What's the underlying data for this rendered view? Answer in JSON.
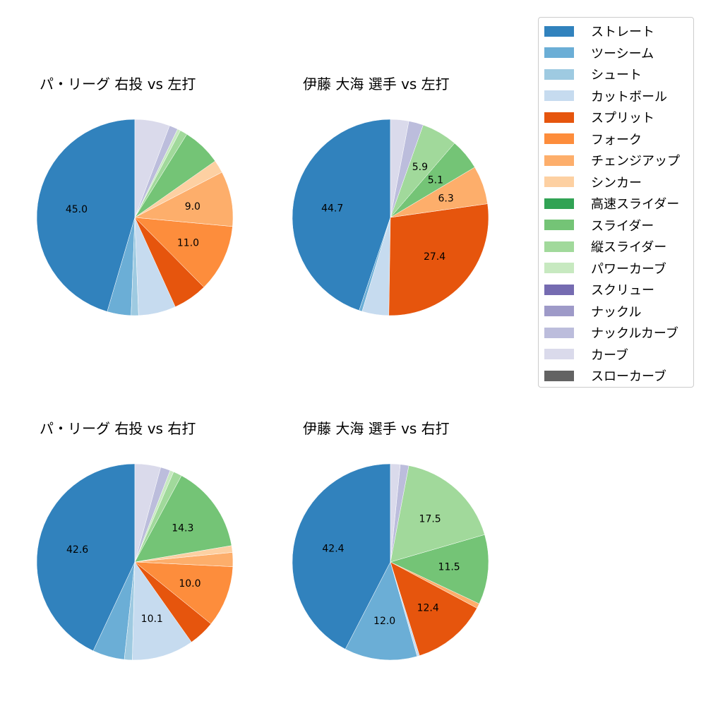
{
  "legend": {
    "items": [
      {
        "label": "ストレート",
        "color": "#3182bd"
      },
      {
        "label": "ツーシーム",
        "color": "#6baed6"
      },
      {
        "label": "シュート",
        "color": "#9ecae1"
      },
      {
        "label": "カットボール",
        "color": "#c6dbef"
      },
      {
        "label": "スプリット",
        "color": "#e6550d"
      },
      {
        "label": "フォーク",
        "color": "#fd8d3c"
      },
      {
        "label": "チェンジアップ",
        "color": "#fdae6b"
      },
      {
        "label": "シンカー",
        "color": "#fdd0a2"
      },
      {
        "label": "高速スライダー",
        "color": "#31a354"
      },
      {
        "label": "スライダー",
        "color": "#74c476"
      },
      {
        "label": "縦スライダー",
        "color": "#a1d99b"
      },
      {
        "label": "パワーカーブ",
        "color": "#c7e9c0"
      },
      {
        "label": "スクリュー",
        "color": "#756bb1"
      },
      {
        "label": "ナックル",
        "color": "#9e9ac8"
      },
      {
        "label": "ナックルカーブ",
        "color": "#bcbddc"
      },
      {
        "label": "カーブ",
        "color": "#dadaeb"
      },
      {
        "label": "スローカーブ",
        "color": "#636363"
      }
    ]
  },
  "charts": [
    {
      "title": "パ・リーグ 右投 vs 左打"
    },
    {
      "title": "伊藤 大海 選手 vs 左打"
    },
    {
      "title": "パ・リーグ 右投 vs 右打"
    },
    {
      "title": "伊藤 大海 選手 vs 右打"
    }
  ],
  "chart_data": [
    {
      "type": "pie",
      "title": "パ・リーグ 右投 vs 左打",
      "start_angle": 90,
      "direction": "counterclockwise",
      "label_threshold": 8,
      "categories": [
        "ストレート",
        "ツーシーム",
        "シュート",
        "カットボール",
        "スプリット",
        "フォーク",
        "チェンジアップ",
        "シンカー",
        "スライダー",
        "縦スライダー",
        "パワーカーブ",
        "ナックルカーブ",
        "カーブ"
      ],
      "values": [
        45.0,
        3.9,
        1.2,
        6.1,
        5.6,
        11.0,
        9.0,
        2.1,
        6.3,
        1.2,
        0.5,
        1.4,
        5.7
      ],
      "labels_shown": [
        "45.0",
        "11.0",
        "9.0"
      ]
    },
    {
      "type": "pie",
      "title": "伊藤 大海 選手 vs 左打",
      "start_angle": 90,
      "direction": "counterclockwise",
      "label_threshold": 5,
      "categories": [
        "ストレート",
        "ツーシーム",
        "カットボール",
        "スプリット",
        "チェンジアップ",
        "スライダー",
        "縦スライダー",
        "ナックルカーブ",
        "カーブ"
      ],
      "values": [
        44.7,
        0.5,
        4.4,
        27.4,
        6.3,
        5.1,
        5.9,
        2.4,
        3.0
      ],
      "labels_shown": [
        "44.7",
        "27.4",
        "6.3",
        "5.1",
        "5.9"
      ]
    },
    {
      "type": "pie",
      "title": "パ・リーグ 右投 vs 右打",
      "start_angle": 90,
      "direction": "counterclockwise",
      "label_threshold": 8,
      "categories": [
        "ストレート",
        "ツーシーム",
        "シュート",
        "カットボール",
        "スプリット",
        "フォーク",
        "チェンジアップ",
        "シンカー",
        "スライダー",
        "縦スライダー",
        "パワーカーブ",
        "ナックルカーブ",
        "カーブ"
      ],
      "values": [
        42.6,
        5.2,
        1.3,
        10.1,
        4.3,
        10.0,
        2.3,
        1.1,
        14.3,
        1.4,
        0.6,
        1.6,
        4.2
      ],
      "labels_shown": [
        "42.6",
        "10.1",
        "10.0",
        "14.3"
      ]
    },
    {
      "type": "pie",
      "title": "伊藤 大海 選手 vs 右打",
      "start_angle": 90,
      "direction": "counterclockwise",
      "label_threshold": 8,
      "categories": [
        "ストレート",
        "ツーシーム",
        "カットボール",
        "スプリット",
        "チェンジアップ",
        "スライダー",
        "縦スライダー",
        "ナックルカーブ",
        "カーブ"
      ],
      "values": [
        42.4,
        12.0,
        0.4,
        12.4,
        0.8,
        11.5,
        17.5,
        1.4,
        1.6
      ],
      "labels_shown": [
        "42.4",
        "12.0",
        "12.4",
        "11.5",
        "17.5"
      ]
    }
  ]
}
